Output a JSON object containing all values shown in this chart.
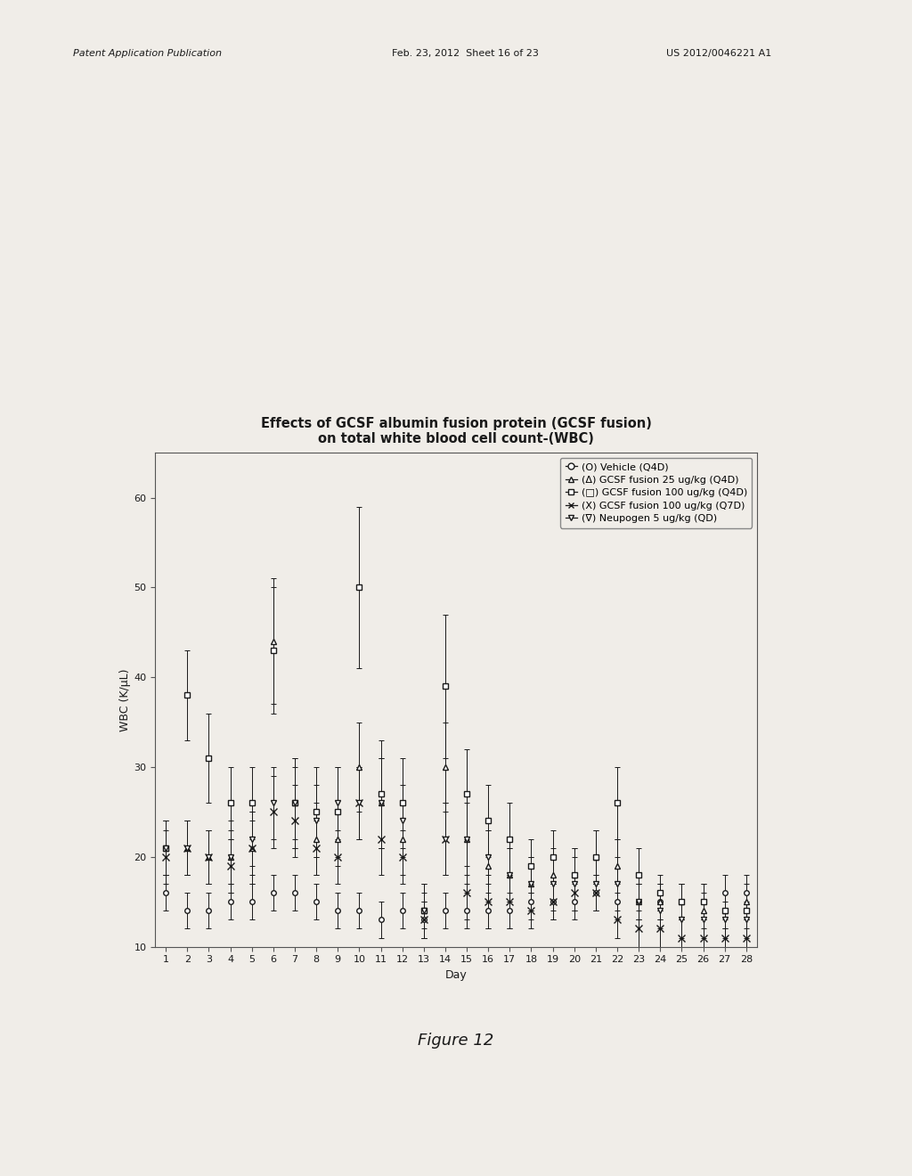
{
  "title_line1": "Effects of GCSF albumin fusion protein (GCSF fusion)",
  "title_line2": "on total white blood cell count-(WBC)",
  "xlabel": "Day",
  "ylabel": "WBC (K/µL)",
  "ylim": [
    10,
    65
  ],
  "yticks": [
    10,
    20,
    30,
    40,
    50,
    60
  ],
  "xticks": [
    1,
    2,
    3,
    4,
    5,
    6,
    7,
    8,
    9,
    10,
    11,
    12,
    13,
    14,
    15,
    16,
    17,
    18,
    19,
    20,
    21,
    22,
    23,
    24,
    25,
    26,
    27,
    28
  ],
  "header_left": "Patent Application Publication",
  "header_mid": "Feb. 23, 2012  Sheet 16 of 23",
  "header_right": "US 2012/0046221 A1",
  "figure_label": "Figure 12",
  "legend_entries": [
    "(O) Vehicle (Q4D)",
    "(Δ) GCSF fusion 25 ug/kg (Q4D)",
    "(□) GCSF fusion 100 ug/kg (Q4D)",
    "(X) GCSF fusion 100 ug/kg (Q7D)",
    "(∇) Neupogen 5 ug/kg (QD)"
  ],
  "series": {
    "vehicle": {
      "days": [
        1,
        2,
        3,
        4,
        5,
        6,
        7,
        8,
        9,
        10,
        11,
        12,
        13,
        14,
        15,
        16,
        17,
        18,
        19,
        20,
        21,
        22,
        23,
        24,
        25,
        26,
        27,
        28
      ],
      "values": [
        16,
        14,
        14,
        15,
        15,
        16,
        16,
        15,
        14,
        14,
        13,
        14,
        13,
        14,
        14,
        14,
        14,
        15,
        15,
        15,
        16,
        15,
        15,
        15,
        15,
        15,
        16,
        16
      ],
      "yerr": [
        2,
        2,
        2,
        2,
        2,
        2,
        2,
        2,
        2,
        2,
        2,
        2,
        2,
        2,
        2,
        2,
        2,
        2,
        2,
        2,
        2,
        2,
        2,
        2,
        2,
        2,
        2,
        2
      ],
      "marker": "o"
    },
    "gcsf25": {
      "days": [
        1,
        2,
        3,
        4,
        5,
        6,
        7,
        8,
        9,
        10,
        11,
        12,
        13,
        14,
        15,
        16,
        17,
        18,
        19,
        20,
        21,
        22,
        23,
        24,
        25,
        26,
        27,
        28
      ],
      "values": [
        21,
        21,
        20,
        20,
        21,
        44,
        26,
        22,
        22,
        30,
        26,
        22,
        14,
        30,
        22,
        19,
        18,
        17,
        18,
        18,
        20,
        19,
        15,
        15,
        15,
        14,
        14,
        15
      ],
      "yerr": [
        3,
        3,
        3,
        4,
        4,
        7,
        5,
        4,
        3,
        5,
        5,
        4,
        3,
        5,
        5,
        4,
        3,
        3,
        3,
        3,
        3,
        3,
        2,
        2,
        2,
        2,
        2,
        2
      ],
      "marker": "^"
    },
    "gcsf100_q4d": {
      "days": [
        1,
        2,
        3,
        4,
        5,
        6,
        7,
        8,
        9,
        10,
        11,
        12,
        13,
        14,
        15,
        16,
        17,
        18,
        19,
        20,
        21,
        22,
        23,
        24,
        25,
        26,
        27,
        28
      ],
      "values": [
        21,
        38,
        31,
        26,
        26,
        43,
        26,
        25,
        25,
        50,
        27,
        26,
        14,
        39,
        27,
        24,
        22,
        19,
        20,
        18,
        20,
        26,
        18,
        16,
        15,
        15,
        14,
        14
      ],
      "yerr": [
        3,
        5,
        5,
        4,
        4,
        7,
        5,
        5,
        5,
        9,
        6,
        5,
        3,
        8,
        5,
        4,
        4,
        3,
        3,
        3,
        3,
        4,
        3,
        2,
        2,
        2,
        2,
        2
      ],
      "marker": "s"
    },
    "gcsf100_q7d": {
      "days": [
        1,
        2,
        3,
        4,
        5,
        6,
        7,
        8,
        9,
        10,
        11,
        12,
        13,
        14,
        15,
        16,
        17,
        18,
        19,
        20,
        21,
        22,
        23,
        24,
        25,
        26,
        27,
        28
      ],
      "values": [
        20,
        21,
        20,
        19,
        21,
        25,
        24,
        21,
        20,
        26,
        22,
        20,
        13,
        22,
        16,
        15,
        15,
        14,
        15,
        16,
        16,
        13,
        12,
        12,
        11,
        11,
        11,
        11
      ],
      "yerr": [
        3,
        3,
        3,
        3,
        3,
        4,
        4,
        3,
        3,
        4,
        4,
        3,
        2,
        4,
        3,
        3,
        3,
        2,
        2,
        2,
        2,
        2,
        2,
        2,
        2,
        2,
        2,
        2
      ],
      "marker": "x"
    },
    "neupogen": {
      "days": [
        1,
        2,
        3,
        4,
        5,
        6,
        7,
        8,
        9,
        10,
        11,
        12,
        13,
        14,
        15,
        16,
        17,
        18,
        19,
        20,
        21,
        22,
        23,
        24,
        25,
        26,
        27,
        28
      ],
      "values": [
        21,
        21,
        20,
        20,
        22,
        26,
        26,
        24,
        26,
        26,
        26,
        24,
        14,
        22,
        22,
        20,
        18,
        17,
        17,
        17,
        17,
        17,
        15,
        14,
        13,
        13,
        13,
        13
      ],
      "yerr": [
        3,
        3,
        3,
        3,
        3,
        4,
        4,
        4,
        4,
        4,
        5,
        4,
        2,
        4,
        4,
        3,
        3,
        3,
        3,
        3,
        3,
        3,
        2,
        2,
        2,
        2,
        2,
        2
      ],
      "marker": "v"
    }
  },
  "background_color": "#f0ede8",
  "plot_bg_color": "#f0ede8",
  "text_color": "#1a1a1a",
  "line_color": "#1a1a1a",
  "title_fontsize": 10.5,
  "axis_fontsize": 9,
  "tick_fontsize": 8,
  "legend_fontsize": 8
}
